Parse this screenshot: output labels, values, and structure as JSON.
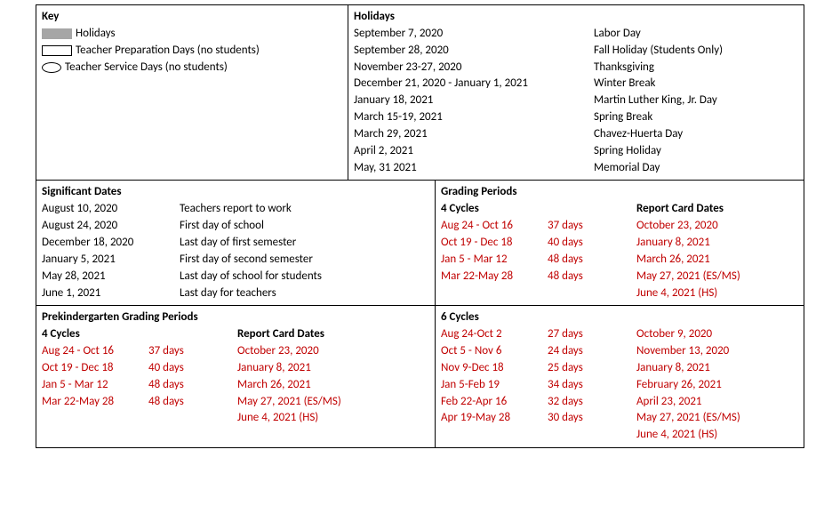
{
  "key": {
    "title": "Key",
    "items": [
      {
        "label": "Holidays"
      },
      {
        "label": "Teacher Preparation Days (no students)"
      },
      {
        "label": "Teacher Service Days (no students)"
      }
    ]
  },
  "holidays": {
    "title": "Holidays",
    "items": [
      {
        "date": "September 7, 2020",
        "name": "Labor Day"
      },
      {
        "date": "September 28, 2020",
        "name": "Fall Holiday (Students Only)"
      },
      {
        "date": "November 23-27, 2020",
        "name": "Thanksgiving"
      },
      {
        "date": "December 21, 2020 - January 1, 2021",
        "name": "Winter Break"
      },
      {
        "date": "January 18, 2021",
        "name": "Martin Luther King, Jr. Day"
      },
      {
        "date": "March 15-19, 2021",
        "name": "Spring Break"
      },
      {
        "date": "March 29, 2021",
        "name": "Chavez-Huerta Day"
      },
      {
        "date": "April 2, 2021",
        "name": "Spring Holiday"
      },
      {
        "date": "May, 31 2021",
        "name": "Memorial Day"
      }
    ]
  },
  "significant": {
    "title": "Significant Dates",
    "items": [
      {
        "date": "August 10, 2020",
        "desc": "Teachers report to work"
      },
      {
        "date": "August 24, 2020",
        "desc": "First day of school"
      },
      {
        "date": "December 18, 2020",
        "desc": "Last day of first semester"
      },
      {
        "date": "January 5, 2021",
        "desc": "First day of second semester"
      },
      {
        "date": "May 28, 2021",
        "desc": "Last day of school for students"
      },
      {
        "date": "June 1, 2021",
        "desc": "Last day for teachers"
      }
    ]
  },
  "grading": {
    "title": "Grading Periods",
    "cyc4_title": "4 Cycles",
    "report_title": "Report Card Dates",
    "cyc4": [
      {
        "range": "Aug 24 - Oct 16",
        "days": "37 days",
        "report": "October 23, 2020"
      },
      {
        "range": "Oct 19 - Dec 18",
        "days": "40 days",
        "report": "January 8, 2021"
      },
      {
        "range": "Jan 5 - Mar 12",
        "days": "48 days",
        "report": "March 26, 2021"
      },
      {
        "range": "Mar 22-May 28",
        "days": "48 days",
        "report": "May 27, 2021 (ES/MS)"
      }
    ],
    "cyc4_extra": "June 4, 2021 (HS)",
    "cyc6_title": "6 Cycles",
    "cyc6": [
      {
        "range": "Aug 24-Oct 2",
        "days": "27 days",
        "report": "October 9, 2020"
      },
      {
        "range": "Oct 5 - Nov 6",
        "days": "24 days",
        "report": "November 13, 2020"
      },
      {
        "range": "Nov 9-Dec 18",
        "days": "25 days",
        "report": "January 8, 2021"
      },
      {
        "range": "Jan 5-Feb 19",
        "days": "34 days",
        "report": "February 26, 2021"
      },
      {
        "range": "Feb 22-Apr 16",
        "days": "32 days",
        "report": "April 23, 2021"
      },
      {
        "range": "Apr 19-May 28",
        "days": "30 days",
        "report": "May 27, 2021 (ES/MS)"
      }
    ],
    "cyc6_extra": "June 4, 2021 (HS)"
  },
  "prek": {
    "title": "Prekindergarten Grading Periods",
    "cyc4_title": "4 Cycles",
    "report_title": "Report Card Dates",
    "cyc4": [
      {
        "range": "Aug 24 - Oct 16",
        "days": "37 days",
        "report": "October 23, 2020"
      },
      {
        "range": "Oct 19 - Dec 18",
        "days": "40 days",
        "report": "January 8, 2021"
      },
      {
        "range": "Jan 5 - Mar 12",
        "days": "48 days",
        "report": "March 26, 2021"
      },
      {
        "range": "Mar 22-May 28",
        "days": "48 days",
        "report": "May 27, 2021 (ES/MS)"
      }
    ],
    "extra": "June 4, 2021 (HS)"
  }
}
